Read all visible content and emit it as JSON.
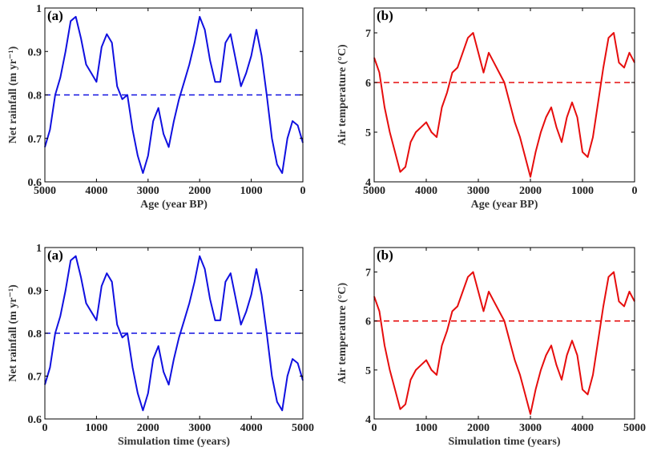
{
  "colors": {
    "blue": "#1010e0",
    "red": "#e60d0d",
    "axes": "#000000"
  },
  "chart_data": [
    {
      "type": "line",
      "panel_label": "(a)",
      "xlabel": "Age (year BP)",
      "ylabel": "Net rainfall (m yr⁻¹)",
      "xlim": [
        5000,
        0
      ],
      "x_reversed": true,
      "ylim": [
        0.6,
        1.0
      ],
      "xticks": [
        5000,
        4000,
        3000,
        2000,
        1000,
        0
      ],
      "xtick_labels": [
        "5000",
        "4000",
        "3000",
        "2000",
        "1000",
        "0"
      ],
      "yticks": [
        0.6,
        0.7,
        0.8,
        0.9,
        1.0
      ],
      "ytick_labels": [
        "0.6",
        "0.7",
        "0.8",
        "0.9",
        "1"
      ],
      "reference_line": {
        "y": 0.8,
        "style": "dashed"
      },
      "series": [
        {
          "color": "#1010e0",
          "x": [
            5000,
            4900,
            4800,
            4700,
            4600,
            4500,
            4400,
            4300,
            4200,
            4100,
            4000,
            3900,
            3800,
            3700,
            3600,
            3500,
            3400,
            3300,
            3200,
            3100,
            3000,
            2900,
            2800,
            2700,
            2600,
            2500,
            2400,
            2300,
            2200,
            2100,
            2000,
            1900,
            1800,
            1700,
            1600,
            1500,
            1400,
            1300,
            1200,
            1100,
            1000,
            900,
            800,
            700,
            600,
            500,
            400,
            300,
            200,
            100,
            0
          ],
          "y": [
            0.68,
            0.72,
            0.8,
            0.84,
            0.9,
            0.97,
            0.98,
            0.93,
            0.87,
            0.85,
            0.83,
            0.91,
            0.94,
            0.92,
            0.82,
            0.79,
            0.8,
            0.72,
            0.66,
            0.62,
            0.66,
            0.74,
            0.77,
            0.71,
            0.68,
            0.74,
            0.79,
            0.83,
            0.87,
            0.92,
            0.98,
            0.95,
            0.88,
            0.83,
            0.83,
            0.92,
            0.94,
            0.88,
            0.82,
            0.85,
            0.89,
            0.95,
            0.89,
            0.8,
            0.7,
            0.64,
            0.62,
            0.7,
            0.74,
            0.73,
            0.69
          ]
        }
      ],
      "grid": false
    },
    {
      "type": "line",
      "panel_label": "(b)",
      "xlabel": "Age (year BP)",
      "ylabel": "Air temperature (°C)",
      "xlim": [
        5000,
        0
      ],
      "x_reversed": true,
      "ylim": [
        4,
        7.5
      ],
      "xticks": [
        5000,
        4000,
        3000,
        2000,
        1000,
        0
      ],
      "xtick_labels": [
        "5000",
        "4000",
        "3000",
        "2000",
        "1000",
        "0"
      ],
      "yticks": [
        4,
        5,
        6,
        7
      ],
      "ytick_labels": [
        "4",
        "5",
        "6",
        "7"
      ],
      "reference_line": {
        "y": 6.0,
        "style": "dashed"
      },
      "series": [
        {
          "color": "#e60d0d",
          "x": [
            5000,
            4900,
            4800,
            4700,
            4600,
            4500,
            4400,
            4300,
            4200,
            4100,
            4000,
            3900,
            3800,
            3700,
            3600,
            3500,
            3400,
            3300,
            3200,
            3100,
            3000,
            2900,
            2800,
            2700,
            2600,
            2500,
            2400,
            2300,
            2200,
            2100,
            2000,
            1900,
            1800,
            1700,
            1600,
            1500,
            1400,
            1300,
            1200,
            1100,
            1000,
            900,
            800,
            700,
            600,
            500,
            400,
            300,
            200,
            100,
            0
          ],
          "y": [
            6.5,
            6.2,
            5.5,
            5.0,
            4.6,
            4.2,
            4.3,
            4.8,
            5.0,
            5.1,
            5.2,
            5.0,
            4.9,
            5.5,
            5.8,
            6.2,
            6.3,
            6.6,
            6.9,
            7.0,
            6.6,
            6.2,
            6.6,
            6.4,
            6.2,
            6.0,
            5.6,
            5.2,
            4.9,
            4.5,
            4.1,
            4.6,
            5.0,
            5.3,
            5.5,
            5.1,
            4.8,
            5.3,
            5.6,
            5.3,
            4.6,
            4.5,
            4.9,
            5.6,
            6.3,
            6.9,
            7.0,
            6.4,
            6.3,
            6.6,
            6.4
          ]
        }
      ],
      "grid": false
    },
    {
      "type": "line",
      "panel_label": "(a)",
      "xlabel": "Simulation time (years)",
      "ylabel": "Net rainfall (m yr⁻¹)",
      "xlim": [
        0,
        5000
      ],
      "x_reversed": false,
      "ylim": [
        0.6,
        1.0
      ],
      "xticks": [
        0,
        1000,
        2000,
        3000,
        4000,
        5000
      ],
      "xtick_labels": [
        "0",
        "1000",
        "2000",
        "3000",
        "4000",
        "5000"
      ],
      "yticks": [
        0.6,
        0.7,
        0.8,
        0.9,
        1.0
      ],
      "ytick_labels": [
        "0.6",
        "0.7",
        "0.8",
        "0.9",
        "1"
      ],
      "reference_line": {
        "y": 0.8,
        "style": "dashed"
      },
      "series": [
        {
          "color": "#1010e0",
          "x": [
            0,
            100,
            200,
            300,
            400,
            500,
            600,
            700,
            800,
            900,
            1000,
            1100,
            1200,
            1300,
            1400,
            1500,
            1600,
            1700,
            1800,
            1900,
            2000,
            2100,
            2200,
            2300,
            2400,
            2500,
            2600,
            2700,
            2800,
            2900,
            3000,
            3100,
            3200,
            3300,
            3400,
            3500,
            3600,
            3700,
            3800,
            3900,
            4000,
            4100,
            4200,
            4300,
            4400,
            4500,
            4600,
            4700,
            4800,
            4900,
            5000
          ],
          "y": [
            0.68,
            0.72,
            0.8,
            0.84,
            0.9,
            0.97,
            0.98,
            0.93,
            0.87,
            0.85,
            0.83,
            0.91,
            0.94,
            0.92,
            0.82,
            0.79,
            0.8,
            0.72,
            0.66,
            0.62,
            0.66,
            0.74,
            0.77,
            0.71,
            0.68,
            0.74,
            0.79,
            0.83,
            0.87,
            0.92,
            0.98,
            0.95,
            0.88,
            0.83,
            0.83,
            0.92,
            0.94,
            0.88,
            0.82,
            0.85,
            0.89,
            0.95,
            0.89,
            0.8,
            0.7,
            0.64,
            0.62,
            0.7,
            0.74,
            0.73,
            0.69
          ]
        }
      ],
      "grid": false
    },
    {
      "type": "line",
      "panel_label": "(b)",
      "xlabel": "Simulation time (years)",
      "ylabel": "Air temperature (°C)",
      "xlim": [
        0,
        5000
      ],
      "x_reversed": false,
      "ylim": [
        4,
        7.5
      ],
      "xticks": [
        0,
        1000,
        2000,
        3000,
        4000,
        5000
      ],
      "xtick_labels": [
        "0",
        "1000",
        "2000",
        "3000",
        "4000",
        "5000"
      ],
      "yticks": [
        4,
        5,
        6,
        7
      ],
      "ytick_labels": [
        "4",
        "5",
        "6",
        "7"
      ],
      "reference_line": {
        "y": 6.0,
        "style": "dashed"
      },
      "series": [
        {
          "color": "#e60d0d",
          "x": [
            0,
            100,
            200,
            300,
            400,
            500,
            600,
            700,
            800,
            900,
            1000,
            1100,
            1200,
            1300,
            1400,
            1500,
            1600,
            1700,
            1800,
            1900,
            2000,
            2100,
            2200,
            2300,
            2400,
            2500,
            2600,
            2700,
            2800,
            2900,
            3000,
            3100,
            3200,
            3300,
            3400,
            3500,
            3600,
            3700,
            3800,
            3900,
            4000,
            4100,
            4200,
            4300,
            4400,
            4500,
            4600,
            4700,
            4800,
            4900,
            5000
          ],
          "y": [
            6.5,
            6.2,
            5.5,
            5.0,
            4.6,
            4.2,
            4.3,
            4.8,
            5.0,
            5.1,
            5.2,
            5.0,
            4.9,
            5.5,
            5.8,
            6.2,
            6.3,
            6.6,
            6.9,
            7.0,
            6.6,
            6.2,
            6.6,
            6.4,
            6.2,
            6.0,
            5.6,
            5.2,
            4.9,
            4.5,
            4.1,
            4.6,
            5.0,
            5.3,
            5.5,
            5.1,
            4.8,
            5.3,
            5.6,
            5.3,
            4.6,
            4.5,
            4.9,
            5.6,
            6.3,
            6.9,
            7.0,
            6.4,
            6.3,
            6.6,
            6.4
          ]
        }
      ],
      "grid": false
    }
  ]
}
